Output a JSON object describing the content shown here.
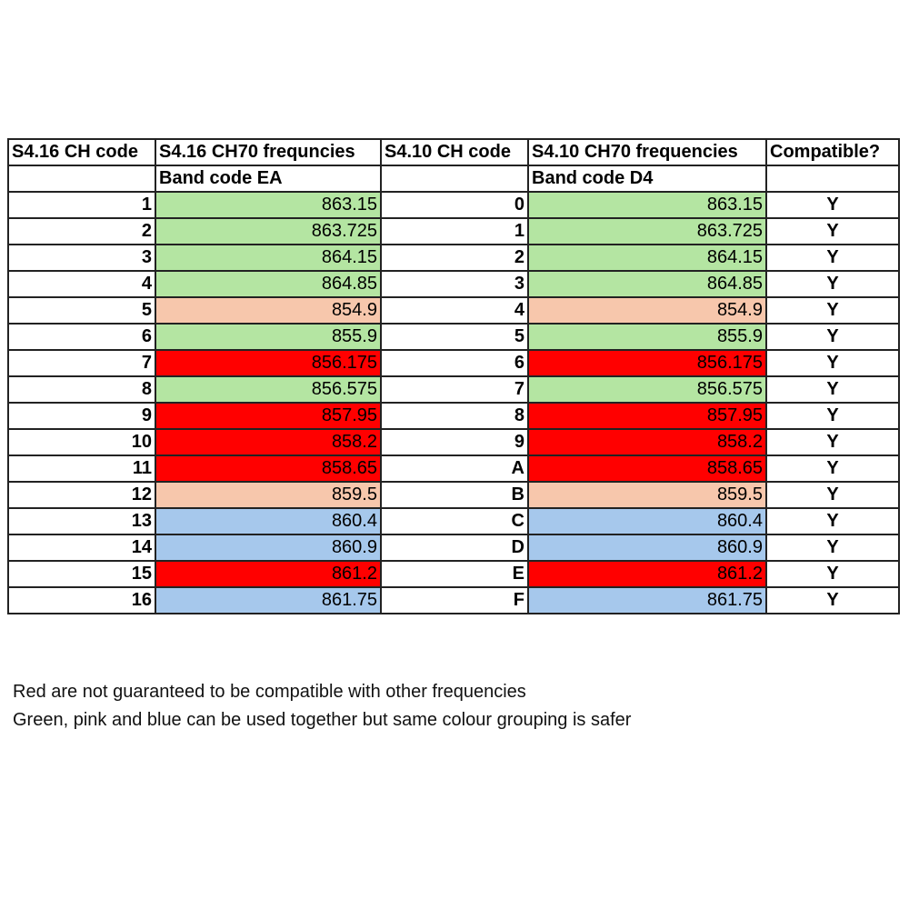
{
  "table": {
    "header": [
      "S4.16 CH code",
      "S4.16 CH70 frequncies",
      "S4.10 CH code",
      "S4.10 CH70 frequencies",
      "Compatible?"
    ],
    "subheader": [
      "Band code EA",
      "Band code D4"
    ],
    "rows": [
      {
        "code_a": "1",
        "freq_a": "863.15",
        "code_b": "0",
        "freq_b": "863.15",
        "compatible": "Y",
        "color": "#b4e5a2"
      },
      {
        "code_a": "2",
        "freq_a": "863.725",
        "code_b": "1",
        "freq_b": "863.725",
        "compatible": "Y",
        "color": "#b4e5a2"
      },
      {
        "code_a": "3",
        "freq_a": "864.15",
        "code_b": "2",
        "freq_b": "864.15",
        "compatible": "Y",
        "color": "#b4e5a2"
      },
      {
        "code_a": "4",
        "freq_a": "864.85",
        "code_b": "3",
        "freq_b": "864.85",
        "compatible": "Y",
        "color": "#b4e5a2"
      },
      {
        "code_a": "5",
        "freq_a": "854.9",
        "code_b": "4",
        "freq_b": "854.9",
        "compatible": "Y",
        "color": "#f7c7ac"
      },
      {
        "code_a": "6",
        "freq_a": "855.9",
        "code_b": "5",
        "freq_b": "855.9",
        "compatible": "Y",
        "color": "#b4e5a2"
      },
      {
        "code_a": "7",
        "freq_a": "856.175",
        "code_b": "6",
        "freq_b": "856.175",
        "compatible": "Y",
        "color": "#ff0000"
      },
      {
        "code_a": "8",
        "freq_a": "856.575",
        "code_b": "7",
        "freq_b": "856.575",
        "compatible": "Y",
        "color": "#b4e5a2"
      },
      {
        "code_a": "9",
        "freq_a": "857.95",
        "code_b": "8",
        "freq_b": "857.95",
        "compatible": "Y",
        "color": "#ff0000"
      },
      {
        "code_a": "10",
        "freq_a": "858.2",
        "code_b": "9",
        "freq_b": "858.2",
        "compatible": "Y",
        "color": "#ff0000"
      },
      {
        "code_a": "11",
        "freq_a": "858.65",
        "code_b": "A",
        "freq_b": "858.65",
        "compatible": "Y",
        "color": "#ff0000"
      },
      {
        "code_a": "12",
        "freq_a": "859.5",
        "code_b": "B",
        "freq_b": "859.5",
        "compatible": "Y",
        "color": "#f7c7ac"
      },
      {
        "code_a": "13",
        "freq_a": "860.4",
        "code_b": "C",
        "freq_b": "860.4",
        "compatible": "Y",
        "color": "#a6c8ec"
      },
      {
        "code_a": "14",
        "freq_a": "860.9",
        "code_b": "D",
        "freq_b": "860.9",
        "compatible": "Y",
        "color": "#a6c8ec"
      },
      {
        "code_a": "15",
        "freq_a": "861.2",
        "code_b": "E",
        "freq_b": "861.2",
        "compatible": "Y",
        "color": "#ff0000"
      },
      {
        "code_a": "16",
        "freq_a": "861.75",
        "code_b": "F",
        "freq_b": "861.75",
        "compatible": "Y",
        "color": "#a6c8ec"
      }
    ]
  },
  "notes": [
    "Red are not guaranteed to be compatible with other frequencies",
    "Green, pink and blue can be used together but same colour grouping is safer"
  ]
}
